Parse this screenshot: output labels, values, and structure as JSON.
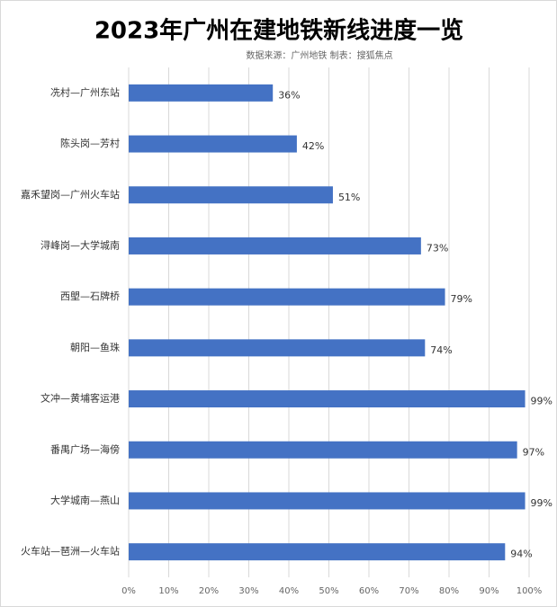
{
  "chart_data": {
    "type": "hbar",
    "title": "2023年广州在建地铁新线进度一览",
    "subtitle": "数据来源：广州地铁  制表：搜狐焦点",
    "categories": [
      "冼村—广州东站",
      "陈头岗—芳村",
      "嘉禾望岗—广州火车站",
      "浔峰岗—大学城南",
      "西塱—石牌桥",
      "朝阳—鱼珠",
      "文冲—黄埔客运港",
      "番禺广场—海傍",
      "大学城南—燕山",
      "火车站—琶洲—火车站"
    ],
    "values": [
      36,
      42,
      51,
      73,
      79,
      74,
      99,
      97,
      99,
      94
    ],
    "value_labels": [
      "36%",
      "42%",
      "51%",
      "73%",
      "79%",
      "74%",
      "99%",
      "97%",
      "99%",
      "94%"
    ],
    "color": "#4472c4",
    "xlim": [
      0,
      100
    ],
    "xticks": [
      {
        "value": 0,
        "label": "0%"
      },
      {
        "value": 10,
        "label": "10%"
      },
      {
        "value": 20,
        "label": "20%"
      },
      {
        "value": 30,
        "label": "30%"
      },
      {
        "value": 40,
        "label": "40%"
      },
      {
        "value": 50,
        "label": "50%"
      },
      {
        "value": 60,
        "label": "60%"
      },
      {
        "value": 70,
        "label": "70%"
      },
      {
        "value": 80,
        "label": "80%"
      },
      {
        "value": 90,
        "label": "90%"
      },
      {
        "value": 100,
        "label": "100%"
      }
    ],
    "grid": true
  }
}
